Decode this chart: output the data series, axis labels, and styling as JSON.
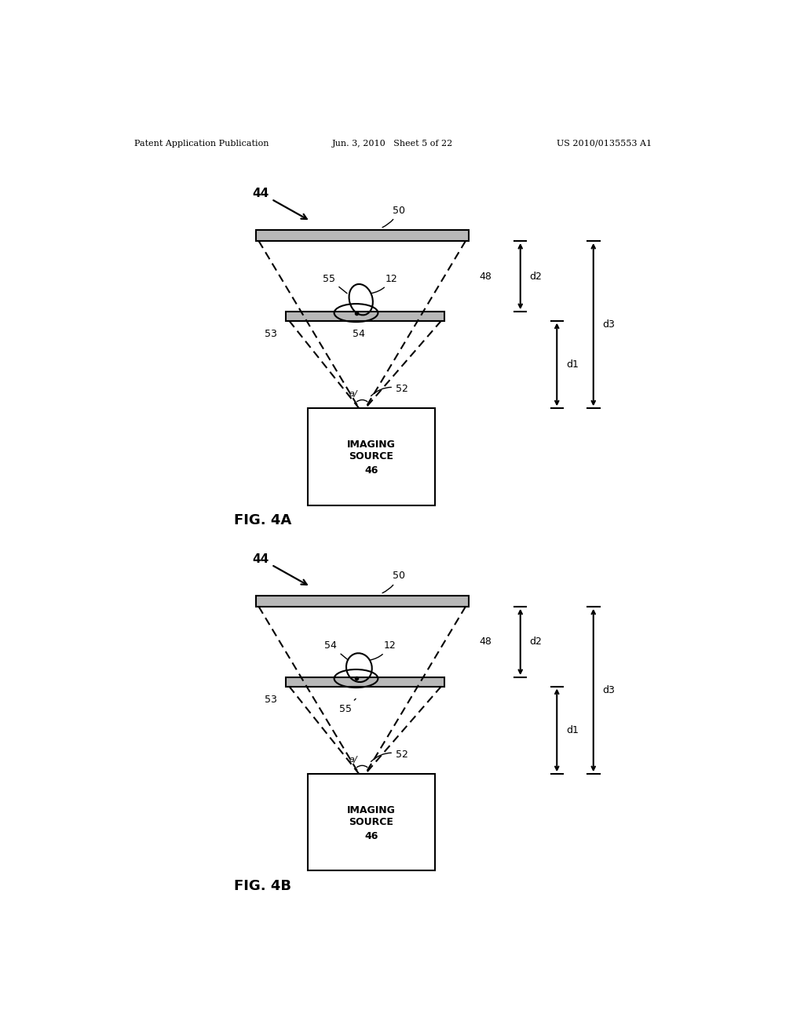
{
  "bg_color": "#ffffff",
  "header_left": "Patent Application Publication",
  "header_mid": "Jun. 3, 2010   Sheet 5 of 22",
  "header_right": "US 2010/0135553 A1",
  "fig4a_label": "FIG. 4A",
  "fig4b_label": "FIG. 4B",
  "line_color": "#000000",
  "fig_width": 10.24,
  "fig_height": 13.2
}
